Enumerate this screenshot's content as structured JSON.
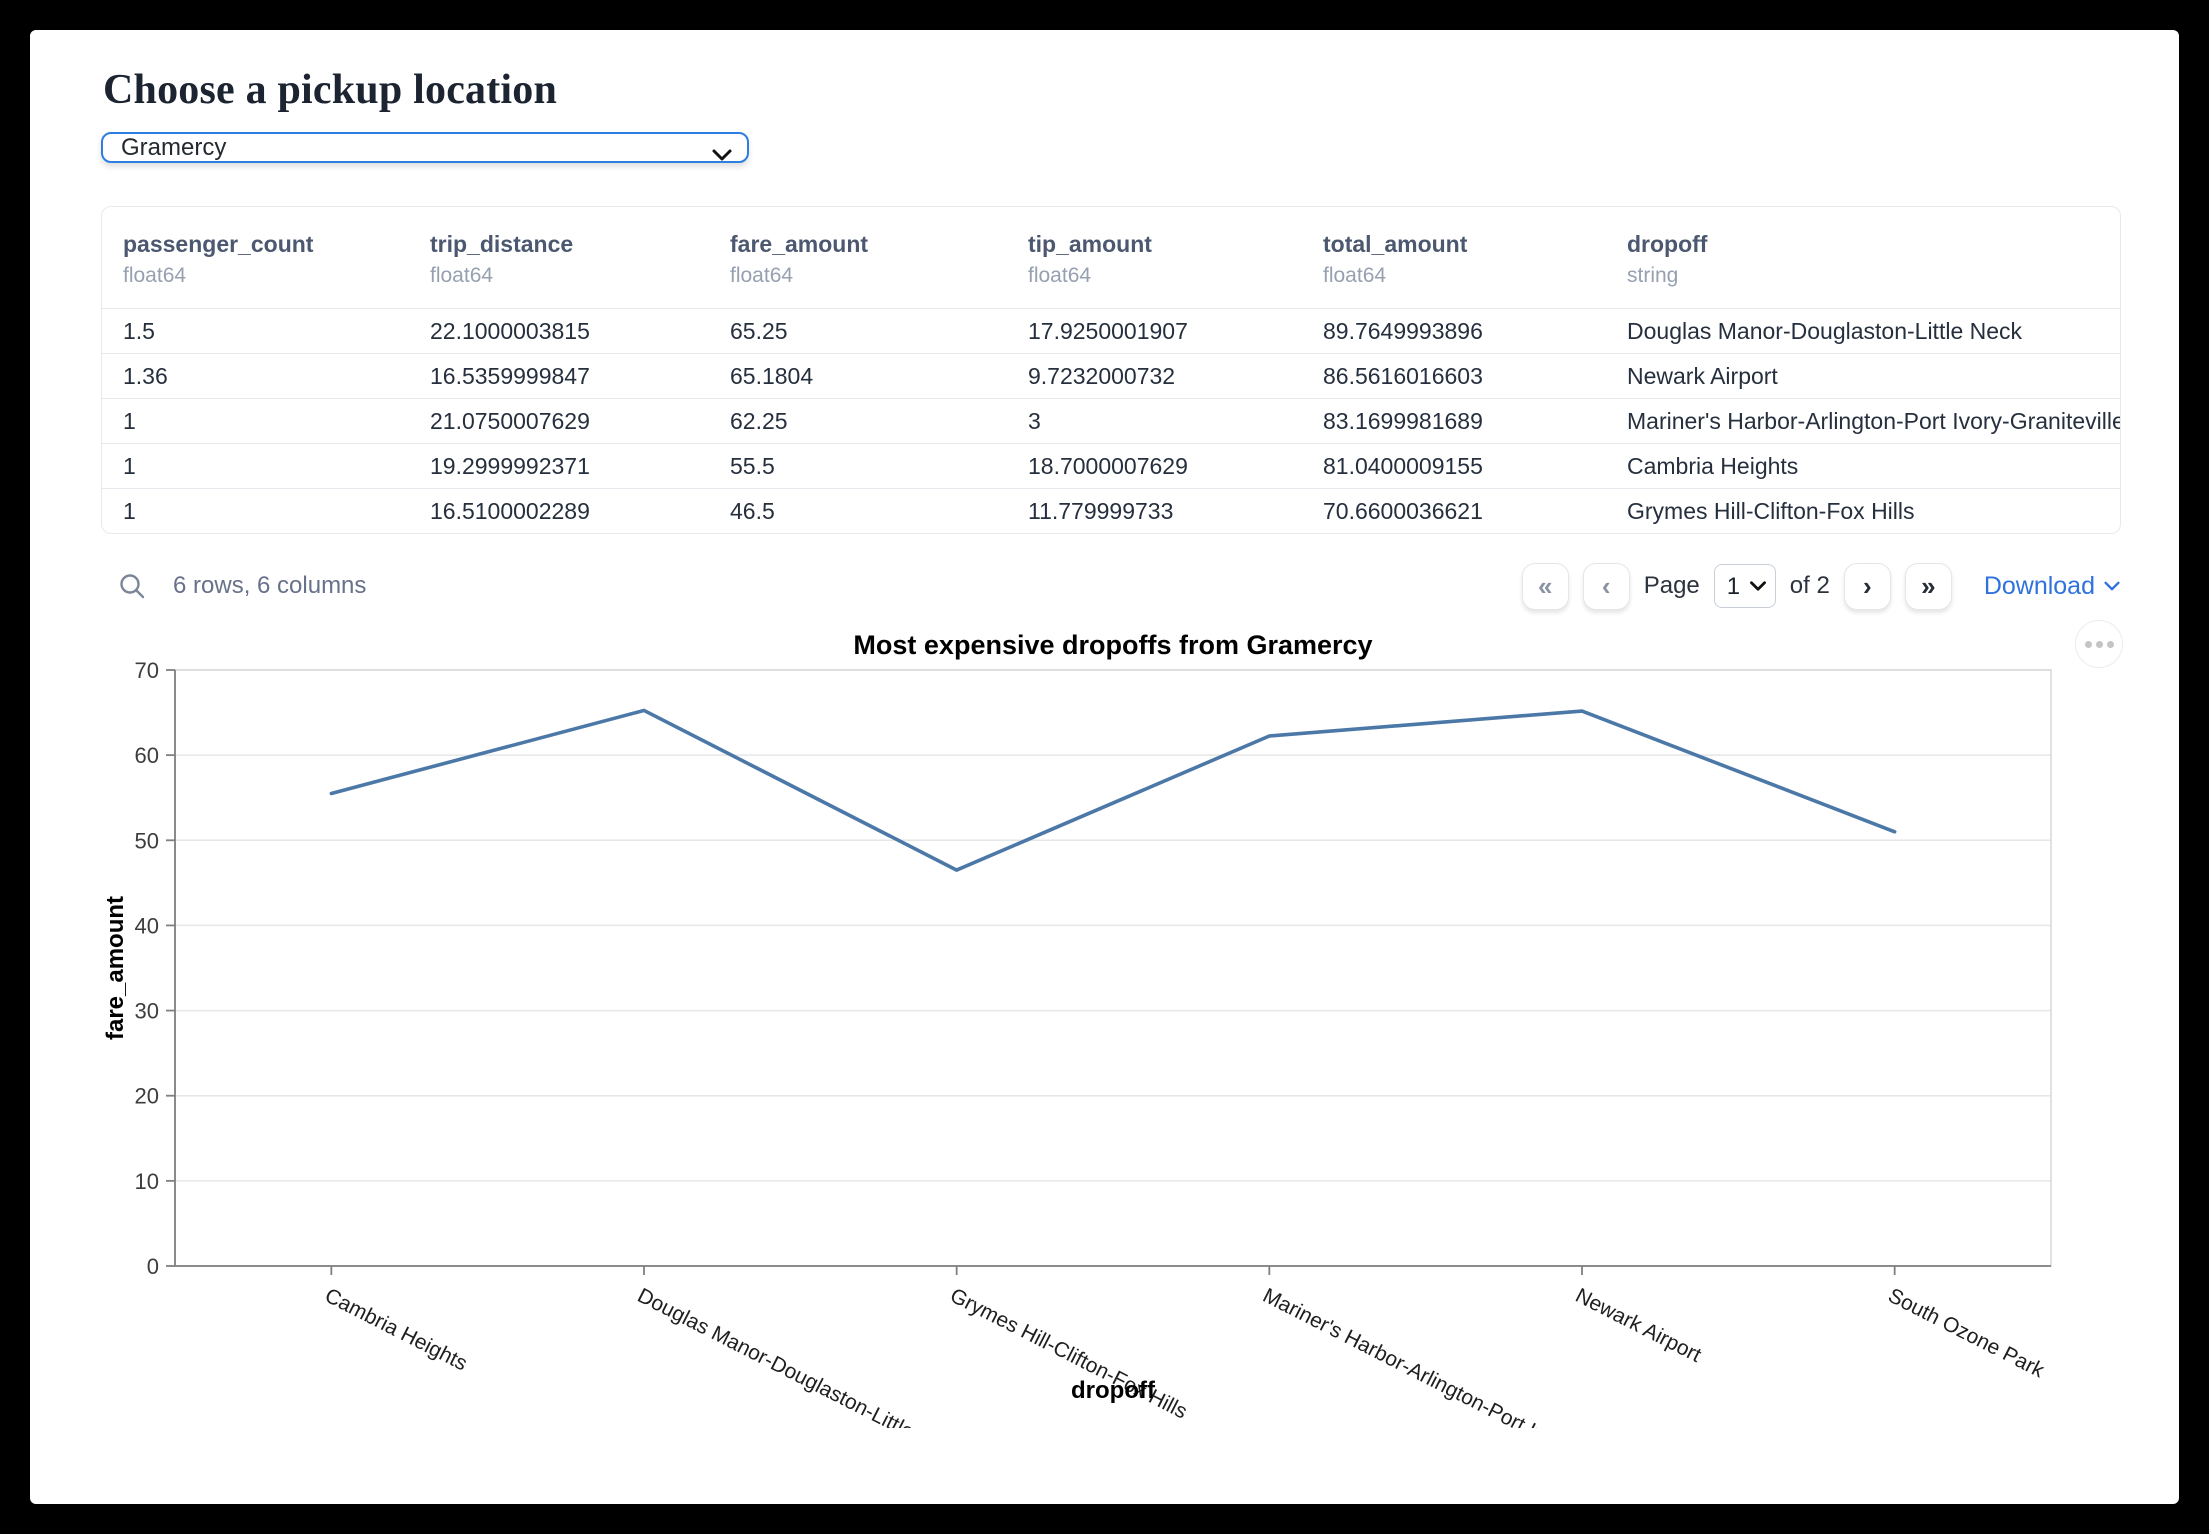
{
  "header": {
    "title": "Choose a pickup location"
  },
  "pickup_select": {
    "value": "Gramercy",
    "options": [
      "Gramercy"
    ]
  },
  "table": {
    "columns": [
      {
        "name": "passenger_count",
        "dtype": "float64"
      },
      {
        "name": "trip_distance",
        "dtype": "float64"
      },
      {
        "name": "fare_amount",
        "dtype": "float64"
      },
      {
        "name": "tip_amount",
        "dtype": "float64"
      },
      {
        "name": "total_amount",
        "dtype": "float64"
      },
      {
        "name": "dropoff",
        "dtype": "string"
      }
    ],
    "rows": [
      [
        "1.5",
        "22.1000003815",
        "65.25",
        "17.9250001907",
        "89.7649993896",
        "Douglas Manor-Douglaston-Little Neck"
      ],
      [
        "1.36",
        "16.5359999847",
        "65.1804",
        "9.7232000732",
        "86.5616016603",
        "Newark Airport"
      ],
      [
        "1",
        "21.0750007629",
        "62.25",
        "3",
        "83.1699981689",
        "Mariner's Harbor-Arlington-Port Ivory-Graniteville"
      ],
      [
        "1",
        "19.2999992371",
        "55.5",
        "18.7000007629",
        "81.0400009155",
        "Cambria Heights"
      ],
      [
        "1",
        "16.5100002289",
        "46.5",
        "11.779999733",
        "70.6600036621",
        "Grymes Hill-Clifton-Fox Hills"
      ]
    ],
    "summary": "6 rows, 6 columns"
  },
  "pagination": {
    "first_icon": "«",
    "prev_icon": "‹",
    "next_icon": "›",
    "last_icon": "»",
    "page_label": "Page",
    "page_value": "1",
    "of_label": "of 2",
    "download_label": "Download"
  },
  "chart_data": {
    "type": "line",
    "title": "Most expensive dropoffs from Gramercy",
    "categories": [
      "Cambria Heights",
      "Douglas Manor-Douglaston-Little Neck",
      "Grymes Hill-Clifton-Fox Hills",
      "Mariner's Harbor-Arlington-Port Ivory-Graniteville",
      "Newark Airport",
      "South Ozone Park"
    ],
    "x_tick_labels": [
      "Cambria Heights",
      "Douglas Manor-Douglaston-Little Neck",
      "Grymes Hill-Clifton-Fox Hills",
      "Mariner's Harbor-Arlington-Port Ivory-…",
      "Newark Airport",
      "South Ozone Park"
    ],
    "values": [
      55.5,
      65.25,
      46.5,
      62.25,
      65.1804,
      51
    ],
    "xlabel": "dropoff",
    "ylabel": "fare_amount",
    "ylim": [
      0,
      70
    ],
    "yticks": [
      0,
      10,
      20,
      30,
      40,
      50,
      60,
      70
    ],
    "grid": true,
    "legend": "none",
    "line_color": "#4c78a8"
  },
  "colors": {
    "accent_blue": "#2e7de0",
    "link_blue": "#2f72dd",
    "line_blue": "#4c78a8",
    "grid_gray": "#e6e6e6",
    "domain_gray": "#7f7f7f"
  }
}
